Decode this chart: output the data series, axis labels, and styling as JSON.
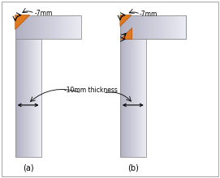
{
  "orange_color": "#e07820",
  "border_c": "#909090",
  "label_7mm": "-7mm",
  "label_10mm": "-10mm thickness",
  "label_a": "(a)",
  "label_b": "(b)",
  "fig_width": 2.71,
  "fig_height": 2.2,
  "dpi": 100,
  "col_dark": "#a0a0b0",
  "col_light": "#ebebf2"
}
